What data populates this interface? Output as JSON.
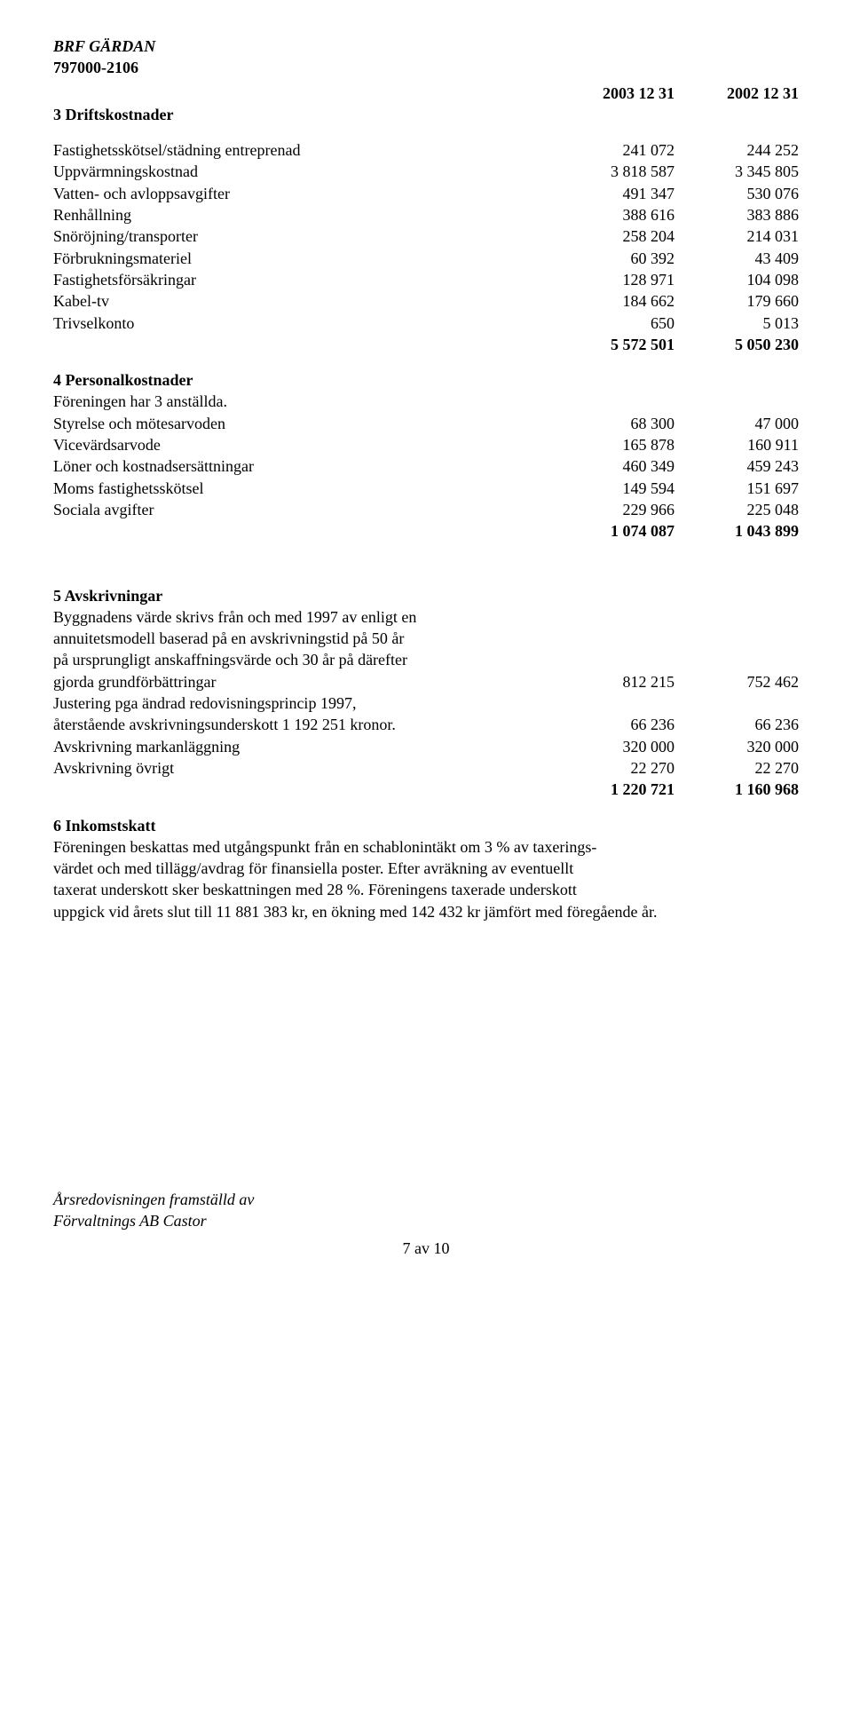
{
  "header": {
    "title": "BRF GÄRDAN",
    "orgnr": "797000-2106"
  },
  "year_cols": {
    "a": "2003 12 31",
    "b": "2002 12 31"
  },
  "sec3": {
    "title": "3 Driftskostnader",
    "rows": [
      {
        "label": "Fastighetsskötsel/städning entreprenad",
        "a": "241 072",
        "b": "244 252"
      },
      {
        "label": "Uppvärmningskostnad",
        "a": "3 818 587",
        "b": "3 345 805"
      },
      {
        "label": "Vatten- och avloppsavgifter",
        "a": "491 347",
        "b": "530 076"
      },
      {
        "label": "Renhållning",
        "a": "388 616",
        "b": "383 886"
      },
      {
        "label": "Snöröjning/transporter",
        "a": "258 204",
        "b": "214 031"
      },
      {
        "label": "Förbrukningsmateriel",
        "a": "60 392",
        "b": "43 409"
      },
      {
        "label": "Fastighetsförsäkringar",
        "a": "128 971",
        "b": "104 098"
      },
      {
        "label": "Kabel-tv",
        "a": "184 662",
        "b": "179 660"
      },
      {
        "label": "Trivselkonto",
        "a": "650",
        "b": "5 013"
      }
    ],
    "total": {
      "a": "5 572 501",
      "b": "5 050 230"
    }
  },
  "sec4": {
    "title": "4 Personalkostnader",
    "note": "Föreningen har 3 anställda.",
    "rows": [
      {
        "label": "Styrelse och mötesarvoden",
        "a": "68 300",
        "b": "47 000"
      },
      {
        "label": "Vicevärdsarvode",
        "a": "165 878",
        "b": "160 911"
      },
      {
        "label": "Löner och kostnadsersättningar",
        "a": "460 349",
        "b": "459 243"
      },
      {
        "label": "Moms fastighetsskötsel",
        "a": "149 594",
        "b": "151 697"
      },
      {
        "label": "Sociala avgifter",
        "a": "229 966",
        "b": "225 048"
      }
    ],
    "total": {
      "a": "1 074 087",
      "b": "1 043 899"
    }
  },
  "sec5": {
    "title": "5 Avskrivningar",
    "intro": [
      "Byggnadens värde skrivs från och med 1997 av enligt en",
      "annuitetsmodell baserad på en avskrivningstid på 50 år",
      "på ursprungligt anskaffningsvärde och 30 år på därefter"
    ],
    "row_grund": {
      "label": "gjorda grundförbättringar",
      "a": "812 215",
      "b": "752 462"
    },
    "just_line": "Justering pga ändrad redovisningsprincip 1997,",
    "row_ater": {
      "label": "återstående avskrivningsunderskott 1 192 251 kronor.",
      "a": "66 236",
      "b": "66 236"
    },
    "row_mark": {
      "label": "Avskrivning markanläggning",
      "a": "320 000",
      "b": "320 000"
    },
    "row_ovrigt": {
      "label": "Avskrivning övrigt",
      "a": "22 270",
      "b": "22 270"
    },
    "total": {
      "a": "1 220 721",
      "b": "1 160 968"
    }
  },
  "sec6": {
    "title": "6 Inkomstskatt",
    "lines": [
      "Föreningen beskattas med utgångspunkt från en schablonintäkt om 3 % av taxerings-",
      "värdet och med tillägg/avdrag för finansiella poster. Efter avräkning av eventuellt",
      "taxerat underskott sker beskattningen med 28 %. Föreningens taxerade underskott",
      "uppgick vid årets slut till 11 881 383 kr, en ökning med 142 432 kr jämfört med föregående år."
    ]
  },
  "footer": {
    "line1": "Årsredovisningen framställd av",
    "line2": "Förvaltnings AB Castor",
    "page": "7 av 10"
  }
}
